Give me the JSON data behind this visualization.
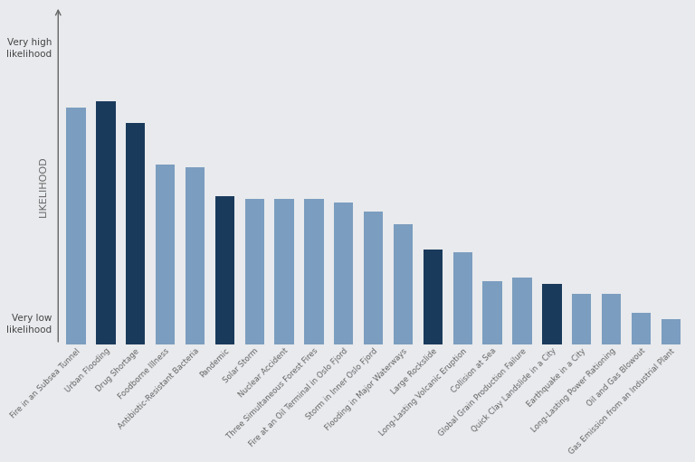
{
  "categories": [
    "Fire in an Subsea Tunnel",
    "Urban Flooding",
    "Drug Shortage",
    "Foodborne Illness",
    "Antibiotic-Resistant Bacteria",
    "Pandemic",
    "Solar Storm",
    "Nuclear Accident",
    "Three Simultaneous Forest Fires",
    "Fire at an Oil Terminal in Oslo Fjord",
    "Storm in Inner Oslo Fjord",
    "Flooding in Major Waterways",
    "Large Rockslide",
    "Long-Lasting Volcanic Eruption",
    "Collision at Sea",
    "Global Grain Production Failure",
    "Quick Clay Landslide in a City",
    "Earthquake in a City",
    "Long-Lasting Power Rationing",
    "Oil and Gas Blowout",
    "Gas Emission from an Industrial Plant"
  ],
  "values": [
    75,
    77,
    70,
    57,
    56,
    47,
    46,
    46,
    46,
    45,
    42,
    38,
    30,
    29,
    20,
    21,
    19,
    16,
    16,
    10,
    8
  ],
  "bar_colors": [
    "#7b9dbf",
    "#1a3a5c",
    "#1a3a5c",
    "#7b9dbf",
    "#7b9dbf",
    "#1a3a5c",
    "#7b9dbf",
    "#7b9dbf",
    "#7b9dbf",
    "#7b9dbf",
    "#7b9dbf",
    "#7b9dbf",
    "#1a3a5c",
    "#7b9dbf",
    "#7b9dbf",
    "#7b9dbf",
    "#1a3a5c",
    "#7b9dbf",
    "#7b9dbf",
    "#7b9dbf",
    "#7b9dbf"
  ],
  "ylabel": "LIKELIHOOD",
  "ytop_label": "Very high\nlikelihood",
  "ybottom_label": "Very low\nlikelihood",
  "background_color": "#e8eaed",
  "grid_color": "#ffffff",
  "ymin": 0,
  "ymax": 100
}
